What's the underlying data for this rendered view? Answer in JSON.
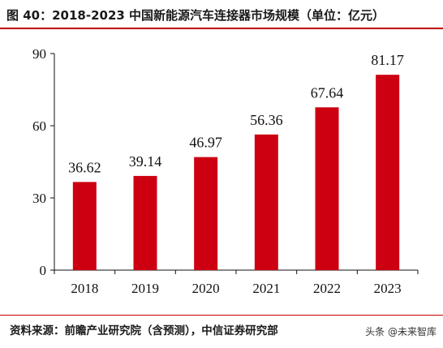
{
  "header": {
    "title": "图 40：2018-2023 中国新能源汽车连接器市场规模（单位：亿元）"
  },
  "footer": {
    "source": "资料来源：前瞻产业研究院（含预测），中信证券研究部",
    "watermark": "头条 @未来智库"
  },
  "colors": {
    "bar": "#cc0011",
    "accent": "#c00000"
  },
  "chart_data": {
    "type": "bar",
    "title": "图 40：2018-2023 中国新能源汽车连接器市场规模（单位：亿元）",
    "categories": [
      "2018",
      "2019",
      "2020",
      "2021",
      "2022",
      "2023"
    ],
    "values": [
      36.62,
      39.14,
      46.97,
      56.36,
      67.64,
      81.17
    ],
    "data_labels": [
      "36.62",
      "39.14",
      "46.97",
      "56.36",
      "67.64",
      "81.17"
    ],
    "yticks": [
      0,
      30,
      60,
      90
    ],
    "ytick_labels": [
      "0",
      "30",
      "60",
      "90"
    ],
    "ylim": [
      0,
      90
    ],
    "xlabel": "",
    "ylabel": "",
    "grid": false,
    "legend": "none"
  }
}
